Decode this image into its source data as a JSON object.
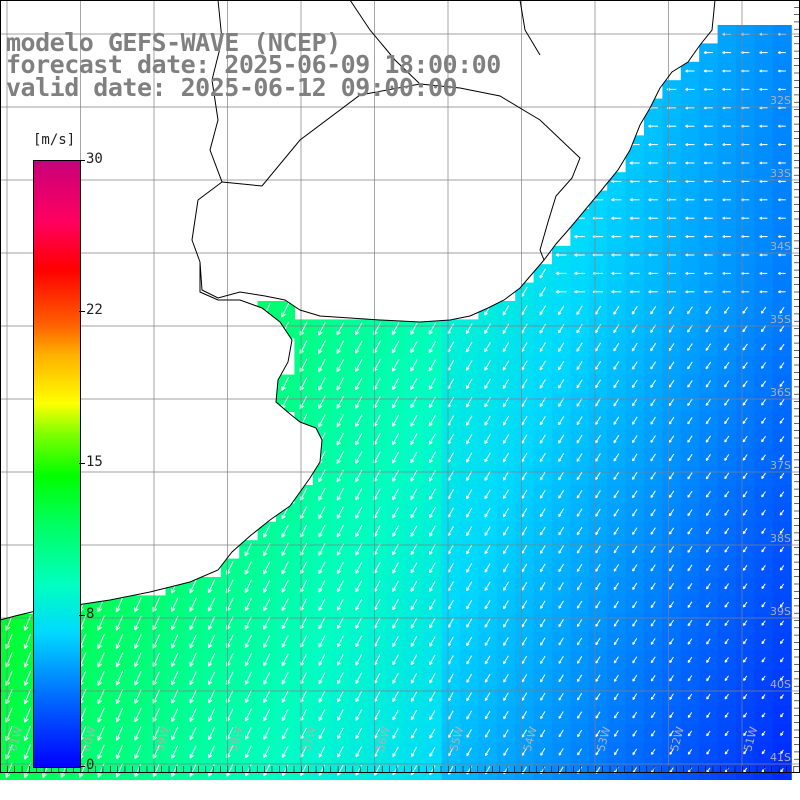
{
  "title": {
    "line1": "modelo GEFS-WAVE (NCEP)",
    "line2": "forecast date: 2025-06-09 18:00:00",
    "line3": "valid date: 2025-06-12 09:00:00"
  },
  "colorbar": {
    "unit": "[m/s]",
    "min": 0,
    "max": 30,
    "ticks": [
      "30",
      "22",
      "15",
      "8",
      "0"
    ]
  },
  "map": {
    "latitude_labels": [
      "32S",
      "33S",
      "34S",
      "35S",
      "36S",
      "37S",
      "38S",
      "39S",
      "40S",
      "41S"
    ],
    "longitude_labels": [
      "61W",
      "60W",
      "59W",
      "58W",
      "57W",
      "56W",
      "55W",
      "54W",
      "53W",
      "52W",
      "51W"
    ],
    "field": "wind speed with direction arrows",
    "colors": {
      "land": "#ffffff",
      "grid": "#808080",
      "coast": "#000000",
      "arrow": "#ffffff",
      "label": "#b0b0b0"
    }
  }
}
